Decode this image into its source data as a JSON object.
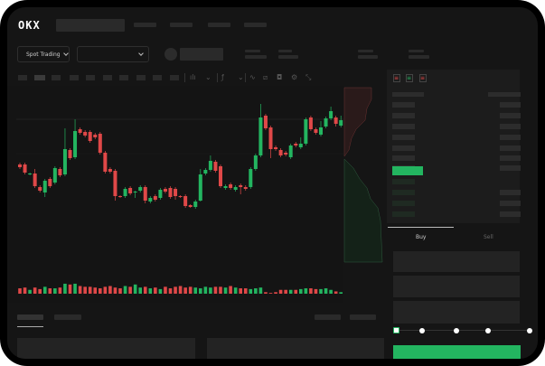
{
  "header": {
    "logo": "OKX"
  },
  "toolbar": {
    "market_dropdown": "Spot Trading"
  },
  "trade_panel": {
    "tabs": [
      {
        "label": "Buy",
        "active": true
      },
      {
        "label": "Sell",
        "active": false
      }
    ],
    "slider_percent": 0
  },
  "colors": {
    "up": "#23b560",
    "down": "#e04848",
    "background": "#151515",
    "accent": "#23b560"
  },
  "icons": [
    "chevron-down-icon",
    "candle-type-icon",
    "line-tool-icon",
    "ruler-icon",
    "camera-icon",
    "settings-icon",
    "fullscreen-icon",
    "orderbook-both-icon",
    "orderbook-bids-icon",
    "orderbook-asks-icon"
  ],
  "chart_data": {
    "type": "candlestick",
    "candles": [
      [
        118,
        115,
        120,
        113
      ],
      [
        118,
        109,
        120,
        107
      ],
      [
        107,
        108,
        109,
        106
      ],
      [
        108,
        94,
        113,
        92
      ],
      [
        93,
        89,
        95,
        87
      ],
      [
        87,
        100,
        102,
        82
      ],
      [
        102,
        94,
        104,
        92
      ],
      [
        98,
        114,
        116,
        96
      ],
      [
        113,
        106,
        115,
        104
      ],
      [
        107,
        135,
        158,
        105
      ],
      [
        134,
        125,
        136,
        123
      ],
      [
        126,
        155,
        168,
        124
      ],
      [
        157,
        153,
        159,
        151
      ],
      [
        154,
        150,
        156,
        148
      ],
      [
        154,
        144,
        156,
        142
      ],
      [
        151,
        148,
        153,
        146
      ],
      [
        152,
        131,
        154,
        129
      ],
      [
        131,
        110,
        133,
        108
      ],
      [
        113,
        110,
        115,
        108
      ],
      [
        111,
        83,
        113,
        78
      ],
      [
        83,
        82,
        84,
        81
      ],
      [
        83,
        91,
        93,
        81
      ],
      [
        92,
        86,
        94,
        84
      ],
      [
        87,
        88,
        89,
        81
      ],
      [
        89,
        93,
        95,
        87
      ],
      [
        93,
        78,
        95,
        75
      ],
      [
        77,
        81,
        83,
        75
      ],
      [
        83,
        79,
        85,
        77
      ],
      [
        81,
        90,
        92,
        79
      ],
      [
        91,
        88,
        93,
        86
      ],
      [
        92,
        82,
        94,
        80
      ],
      [
        91,
        83,
        93,
        79
      ],
      [
        83,
        82,
        84,
        81
      ],
      [
        83,
        72,
        85,
        70
      ],
      [
        73,
        71,
        74,
        70
      ],
      [
        71,
        77,
        79,
        69
      ],
      [
        78,
        107,
        113,
        77
      ],
      [
        108,
        112,
        114,
        106
      ],
      [
        112,
        122,
        128,
        110
      ],
      [
        121,
        111,
        123,
        109
      ],
      [
        116,
        94,
        118,
        92
      ],
      [
        92,
        94,
        96,
        90
      ],
      [
        96,
        92,
        98,
        90
      ],
      [
        90,
        93,
        95,
        88
      ],
      [
        95,
        93,
        97,
        85
      ],
      [
        93,
        91,
        95,
        89
      ],
      [
        93,
        113,
        115,
        91
      ],
      [
        113,
        128,
        130,
        111
      ],
      [
        128,
        170,
        185,
        126
      ],
      [
        172,
        158,
        174,
        156
      ],
      [
        159,
        135,
        161,
        125
      ],
      [
        137,
        135,
        139,
        133
      ],
      [
        134,
        128,
        136,
        126
      ],
      [
        131,
        129,
        133,
        127
      ],
      [
        126,
        139,
        141,
        124
      ],
      [
        141,
        139,
        143,
        137
      ],
      [
        137,
        141,
        148,
        135
      ],
      [
        141,
        168,
        170,
        139
      ],
      [
        170,
        157,
        172,
        155
      ],
      [
        157,
        153,
        159,
        151
      ],
      [
        151,
        159,
        166,
        149
      ],
      [
        160,
        169,
        171,
        158
      ],
      [
        169,
        177,
        182,
        167
      ],
      [
        170,
        163,
        172,
        160
      ],
      [
        161,
        167,
        172,
        159
      ]
    ],
    "volume": [
      7,
      8,
      5,
      8,
      6,
      9,
      7,
      7,
      8,
      13,
      12,
      13,
      10,
      9,
      9,
      8,
      7,
      9,
      10,
      8,
      7,
      10,
      9,
      12,
      8,
      9,
      7,
      8,
      6,
      9,
      7,
      9,
      10,
      8,
      9,
      8,
      7,
      9,
      8,
      9,
      9,
      8,
      10,
      8,
      7,
      7,
      6,
      7,
      8,
      2,
      1,
      2,
      5,
      5,
      5,
      5,
      6,
      7,
      7,
      6,
      6,
      7,
      5,
      3,
      2
    ]
  }
}
